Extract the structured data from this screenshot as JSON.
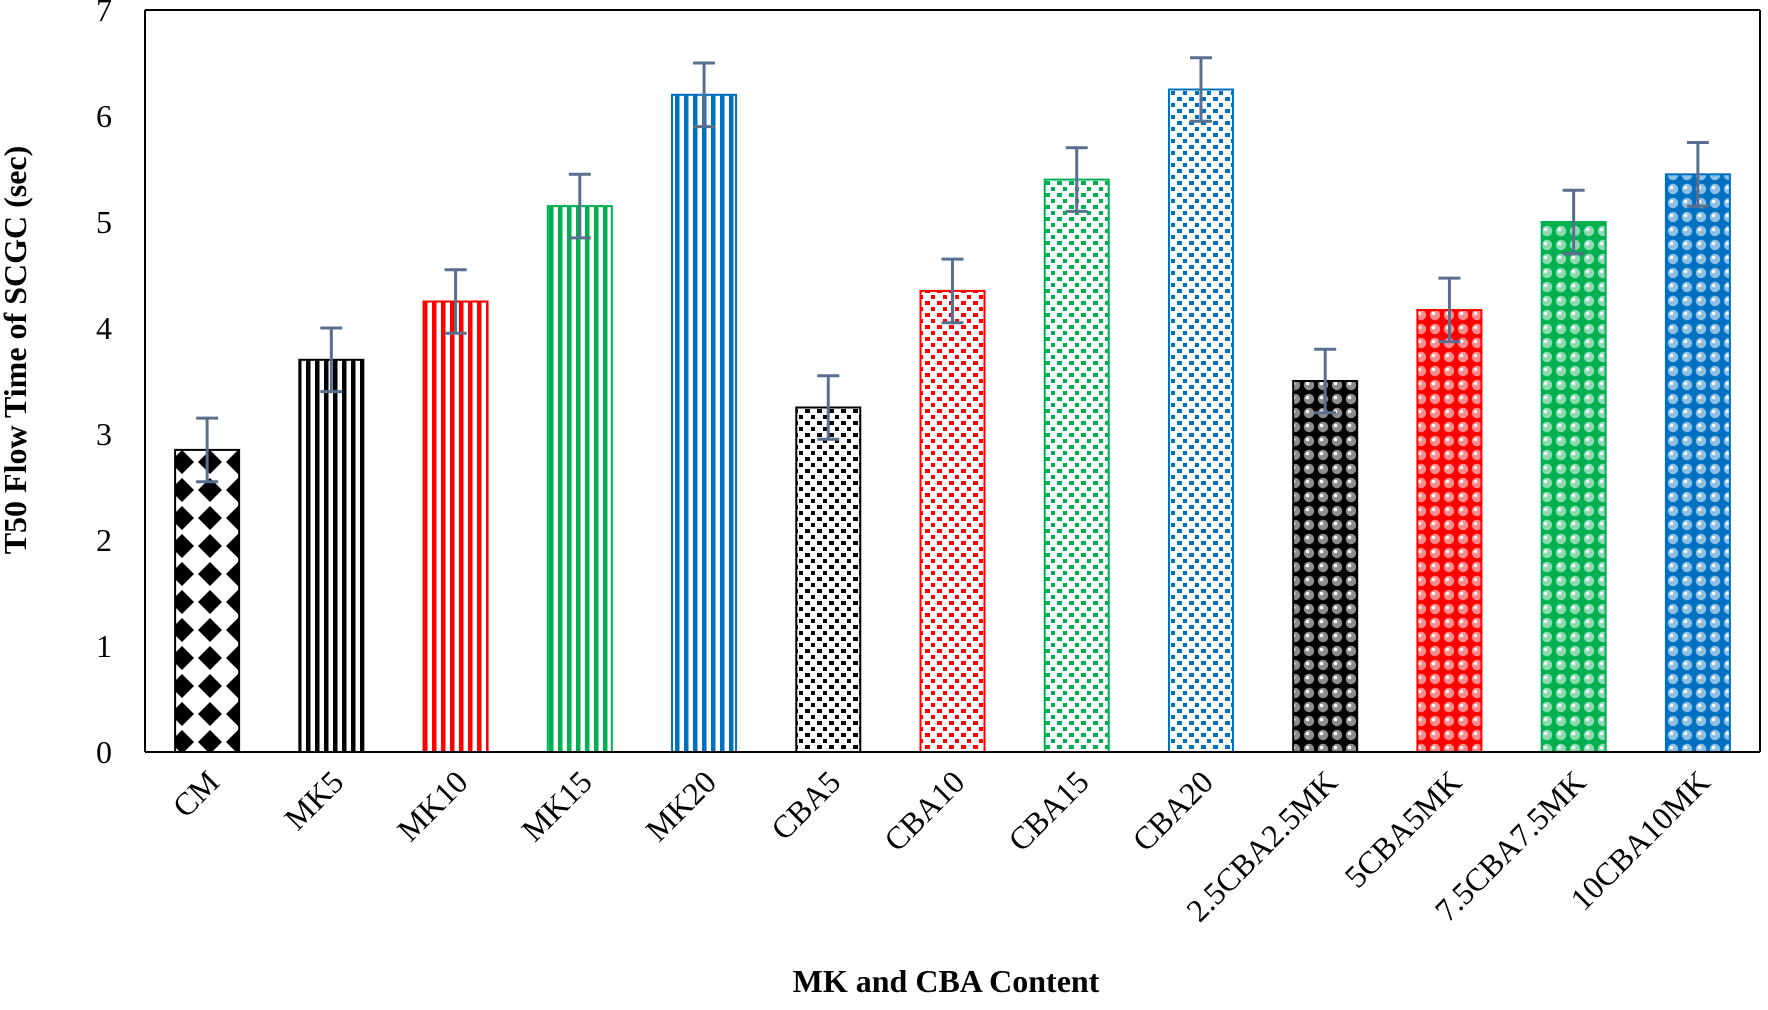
{
  "chart_data": {
    "type": "bar",
    "title": "",
    "xlabel": "MK and CBA Content",
    "ylabel": "T50 Flow Time of SCGC (sec)",
    "ylim": [
      0,
      7
    ],
    "yticks": [
      "0",
      "1",
      "2",
      "3",
      "4",
      "5",
      "6",
      "7"
    ],
    "grid": false,
    "categories": [
      "CM",
      "MK5",
      "MK10",
      "MK15",
      "MK20",
      "CBA5",
      "CBA10",
      "CBA15",
      "CBA20",
      "2.5CBA2.5MK",
      "5CBA5MK",
      "7.5CBA7.5MK",
      "10CBA10MK"
    ],
    "values": [
      2.85,
      3.7,
      4.25,
      5.15,
      6.2,
      3.25,
      4.35,
      5.4,
      6.25,
      3.5,
      4.17,
      5.0,
      5.45
    ],
    "error": [
      0.3,
      0.3,
      0.3,
      0.3,
      0.3,
      0.3,
      0.3,
      0.3,
      0.3,
      0.3,
      0.3,
      0.3,
      0.3
    ],
    "bar_colors": [
      "#000000",
      "#000000",
      "#ff0000",
      "#00b050",
      "#0070c0",
      "#000000",
      "#ff0000",
      "#00b050",
      "#0070c0",
      "#000000",
      "#ff0000",
      "#00b050",
      "#0070c0"
    ],
    "bar_patterns": [
      "diamond",
      "vertical-stripes",
      "vertical-stripes",
      "vertical-stripes",
      "vertical-stripes",
      "confetti",
      "confetti",
      "confetti",
      "confetti",
      "spheres",
      "spheres",
      "spheres",
      "spheres"
    ],
    "error_bar_color": "#5a6f8f"
  }
}
